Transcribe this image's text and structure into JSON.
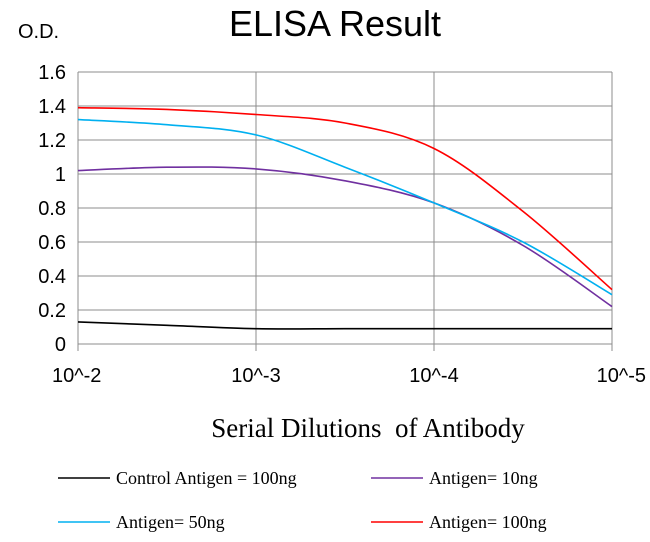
{
  "chart_data": {
    "type": "line",
    "title": "ELISA Result",
    "ylabel": "O.D.",
    "xlabel": "Serial Dilutions  of Antibody",
    "x_ticks": [
      "10^-2",
      "10^-3",
      "10^-4",
      "10^-5"
    ],
    "y_ticks": [
      "0",
      "0.2",
      "0.4",
      "0.6",
      "0.8",
      "1",
      "1.2",
      "1.4",
      "1.6"
    ],
    "ylim": [
      0,
      1.6
    ],
    "x_scale": "log",
    "x_domain": [
      0.01,
      1e-05
    ],
    "grid": true,
    "legend_position": "bottom",
    "series": [
      {
        "name": "Control Antigen = 100ng",
        "color": "#000000",
        "points": [
          {
            "x": 0.01,
            "y": 0.13
          },
          {
            "x": 0.0031623,
            "y": 0.11
          },
          {
            "x": 0.001,
            "y": 0.09
          },
          {
            "x": 0.00031623,
            "y": 0.09
          },
          {
            "x": 0.0001,
            "y": 0.09
          },
          {
            "x": 3.1623e-05,
            "y": 0.09
          },
          {
            "x": 1e-05,
            "y": 0.09
          }
        ]
      },
      {
        "name": "Antigen= 10ng",
        "color": "#7030a0",
        "points": [
          {
            "x": 0.01,
            "y": 1.02
          },
          {
            "x": 0.0031623,
            "y": 1.04
          },
          {
            "x": 0.001,
            "y": 1.03
          },
          {
            "x": 0.00031623,
            "y": 0.96
          },
          {
            "x": 0.0001,
            "y": 0.83
          },
          {
            "x": 3.1623e-05,
            "y": 0.58
          },
          {
            "x": 1e-05,
            "y": 0.22
          }
        ]
      },
      {
        "name": "Antigen= 50ng",
        "color": "#00b0f0",
        "points": [
          {
            "x": 0.01,
            "y": 1.32
          },
          {
            "x": 0.0031623,
            "y": 1.29
          },
          {
            "x": 0.001,
            "y": 1.23
          },
          {
            "x": 0.00031623,
            "y": 1.04
          },
          {
            "x": 0.0001,
            "y": 0.83
          },
          {
            "x": 3.1623e-05,
            "y": 0.6
          },
          {
            "x": 1e-05,
            "y": 0.29
          }
        ]
      },
      {
        "name": "Antigen= 100ng",
        "color": "#ff0000",
        "points": [
          {
            "x": 0.01,
            "y": 1.39
          },
          {
            "x": 0.0031623,
            "y": 1.38
          },
          {
            "x": 0.001,
            "y": 1.35
          },
          {
            "x": 0.00031623,
            "y": 1.3
          },
          {
            "x": 0.0001,
            "y": 1.15
          },
          {
            "x": 3.1623e-05,
            "y": 0.78
          },
          {
            "x": 1e-05,
            "y": 0.32
          }
        ]
      }
    ]
  }
}
